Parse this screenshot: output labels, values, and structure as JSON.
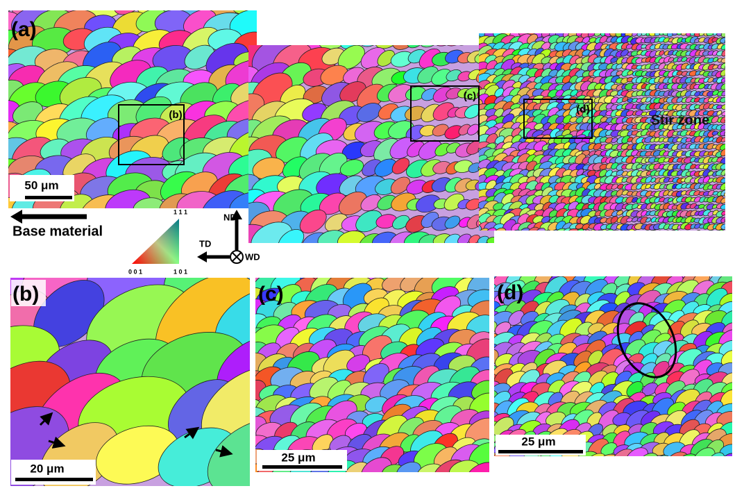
{
  "panels": {
    "a": {
      "label": "(a)",
      "scale_bar": "50 μm",
      "base_material": "Base material",
      "stir_zone": "Stir zone",
      "box_labels": [
        "(b)",
        "(c)",
        "(d)"
      ],
      "legend": {
        "corners": [
          "0 0 1",
          "1 0 1",
          "1 1 1"
        ]
      },
      "axes": {
        "nd": "ND",
        "td": "TD",
        "wd": "WD"
      }
    },
    "b": {
      "label": "(b)",
      "scale_bar": "20 μm"
    },
    "c": {
      "label": "(c)",
      "scale_bar": "25 μm"
    },
    "d": {
      "label": "(d)",
      "scale_bar": "25 μm"
    }
  }
}
